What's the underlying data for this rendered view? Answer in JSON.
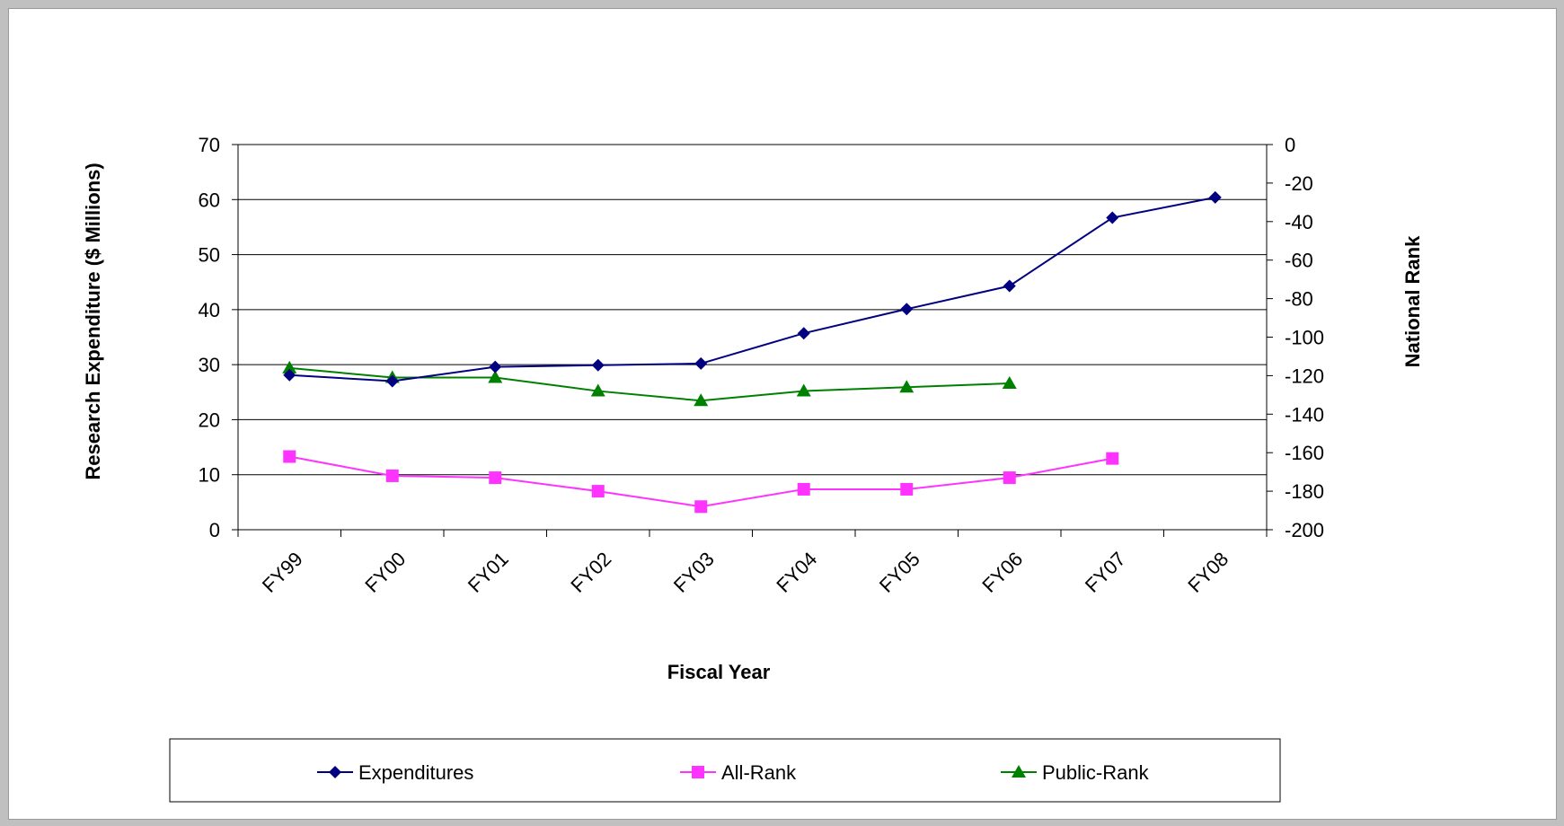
{
  "chart_data": {
    "type": "line",
    "categories": [
      "FY99",
      "FY00",
      "FY01",
      "FY02",
      "FY03",
      "FY04",
      "FY05",
      "FY06",
      "FY07",
      "FY08"
    ],
    "xlabel": "Fiscal Year",
    "ylabel": "Research Expenditure ($ Millions)",
    "y2label": "National Rank",
    "ylim": [
      0,
      70
    ],
    "y2lim": [
      -200,
      0
    ],
    "yticks": [
      "0",
      "10",
      "20",
      "30",
      "40",
      "50",
      "60",
      "70"
    ],
    "y2ticks": [
      "-200",
      "-180",
      "-160",
      "-140",
      "-120",
      "-100",
      "-80",
      "-60",
      "-40",
      "-20",
      "0"
    ],
    "grid": "horizontal",
    "legend_position": "bottom",
    "series": [
      {
        "name": "Expenditures",
        "axis": "left",
        "color": "#000080",
        "marker": "diamond",
        "values": [
          28.1,
          27.0,
          29.6,
          29.9,
          30.2,
          35.7,
          40.1,
          44.3,
          56.7,
          60.4
        ]
      },
      {
        "name": "All-Rank",
        "axis": "right",
        "color": "#ff33ff",
        "marker": "square",
        "values": [
          -162,
          -172,
          -173,
          -180,
          -188,
          -179,
          -179,
          -173,
          -163,
          null
        ]
      },
      {
        "name": "Public-Rank",
        "axis": "right",
        "color": "#008000",
        "marker": "triangle",
        "values": [
          -116,
          -121,
          -121,
          -128,
          -133,
          -128,
          -126,
          -124,
          null,
          null
        ]
      }
    ]
  }
}
